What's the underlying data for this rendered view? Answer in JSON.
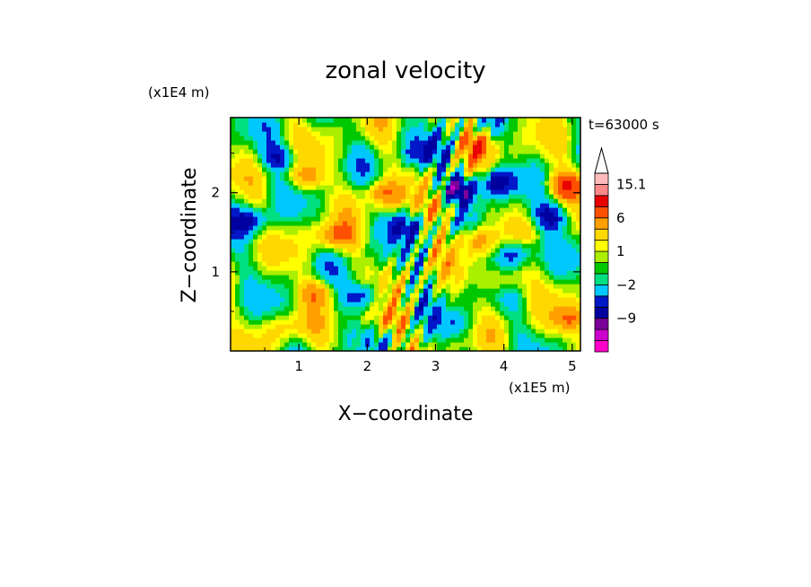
{
  "chart_data": {
    "type": "heatmap",
    "title": "zonal velocity",
    "xlabel": "X−coordinate",
    "ylabel": "Z−coordinate",
    "x_scale_label": "(x1E5 m)",
    "y_scale_label": "(x1E4 m)",
    "time_label": "t=63000 s",
    "x_ticks": [
      "1",
      "2",
      "3",
      "4",
      "5"
    ],
    "x_tick_values": [
      1,
      2,
      3,
      4,
      5
    ],
    "y_ticks": [
      "1",
      "2"
    ],
    "y_tick_values": [
      1,
      2
    ],
    "xlim": [
      0,
      5.12
    ],
    "ylim": [
      0,
      2.95
    ],
    "colorbar": {
      "labels": [
        "15.1",
        "6",
        "1",
        "−2",
        "−9"
      ],
      "label_values": [
        15.1,
        6,
        1,
        -2,
        -9
      ],
      "levels": [
        -15,
        -12,
        -9,
        -6,
        -4,
        -2,
        -1,
        0,
        1,
        2,
        4,
        6,
        9,
        12,
        15.1
      ],
      "colors": [
        "#ff00c8",
        "#cc00cc",
        "#7a009a",
        "#00009e",
        "#0018c8",
        "#00c8ff",
        "#00e080",
        "#00c800",
        "#aaee00",
        "#ffff00",
        "#ffd800",
        "#ffa000",
        "#ff5000",
        "#e80000",
        "#ff8888",
        "#ffbbbb",
        "#ffffff"
      ],
      "extend_top": true
    },
    "field_features": [
      {
        "x": 0.3,
        "z": 1.65,
        "value": -6
      },
      {
        "x": 0.7,
        "z": 2.45,
        "value": -5
      },
      {
        "x": 1.1,
        "z": 2.2,
        "value": 5
      },
      {
        "x": 1.5,
        "z": 1.45,
        "value": 6
      },
      {
        "x": 1.9,
        "z": 0.7,
        "value": -6
      },
      {
        "x": 1.3,
        "z": 0.75,
        "value": 5
      },
      {
        "x": 2.2,
        "z": 2.0,
        "value": 6
      },
      {
        "x": 2.5,
        "z": 1.6,
        "value": -5
      },
      {
        "x": 2.3,
        "z": 0.4,
        "value": 5
      },
      {
        "x": 3.35,
        "z": 2.05,
        "value": -8
      },
      {
        "x": 3.9,
        "z": 2.15,
        "value": -8
      },
      {
        "x": 3.6,
        "z": 2.6,
        "value": 6
      },
      {
        "x": 3.6,
        "z": 1.4,
        "value": 5
      },
      {
        "x": 4.2,
        "z": 1.25,
        "value": -6
      },
      {
        "x": 4.0,
        "z": 0.9,
        "value": 5
      },
      {
        "x": 4.7,
        "z": 1.7,
        "value": -6
      },
      {
        "x": 4.9,
        "z": 2.1,
        "value": 8
      },
      {
        "x": 5.0,
        "z": 0.4,
        "value": 5
      },
      {
        "x": 3.1,
        "z": 1.8,
        "value": 4
      },
      {
        "x": 2.85,
        "z": 2.5,
        "value": -5
      },
      {
        "x": 0.8,
        "z": 0.3,
        "value": 3
      },
      {
        "x": 3.3,
        "z": 0.35,
        "value": -3
      }
    ]
  }
}
